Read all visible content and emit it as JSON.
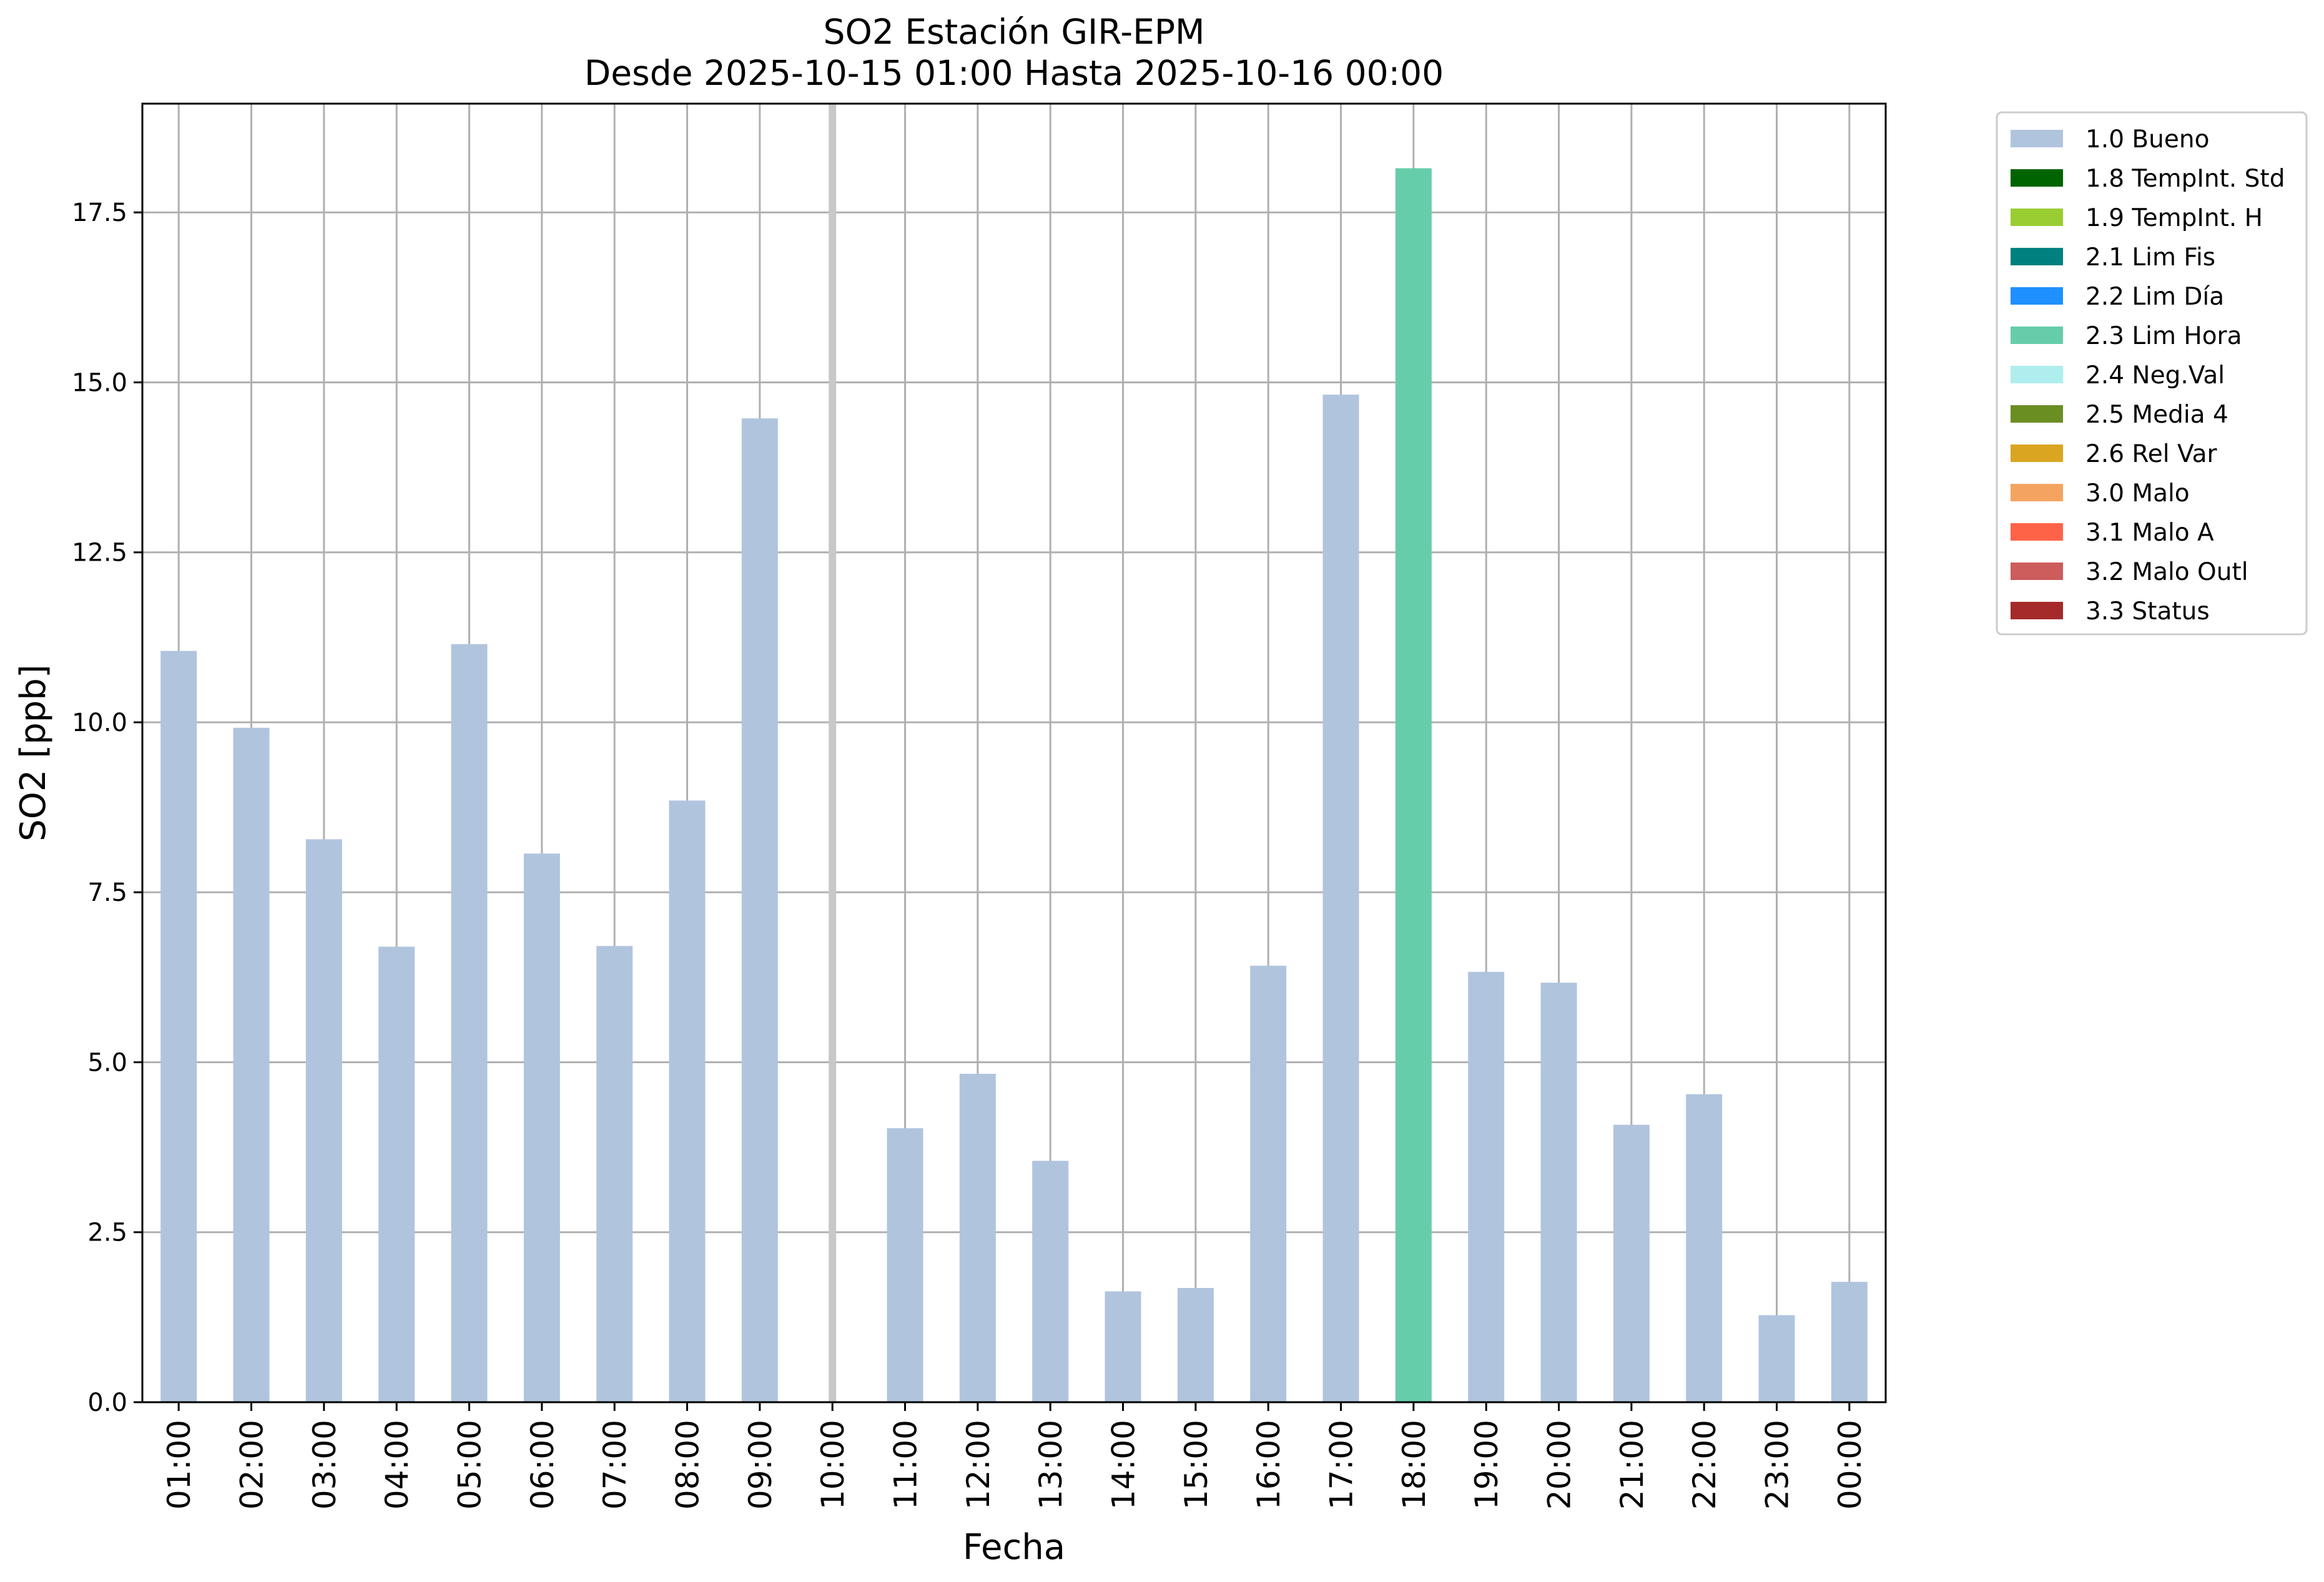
{
  "chart_data": {
    "type": "bar",
    "title": "SO2 Estación GIR-EPM",
    "subtitle": "Desde 2025-10-15 01:00 Hasta 2025-10-16 00:00",
    "xlabel": "Fecha",
    "ylabel": "SO2 [ppb]",
    "ylim": [
      0,
      19.1
    ],
    "yticks": [
      "0.0",
      "2.5",
      "5.0",
      "7.5",
      "10.0",
      "12.5",
      "15.0",
      "17.5"
    ],
    "ytick_values": [
      0,
      2.5,
      5,
      7.5,
      10,
      12.5,
      15,
      17.5
    ],
    "grid": true,
    "legend_position": "outside-top-right",
    "categories": [
      "01:00",
      "02:00",
      "03:00",
      "04:00",
      "05:00",
      "06:00",
      "07:00",
      "08:00",
      "09:00",
      "10:00",
      "11:00",
      "12:00",
      "13:00",
      "14:00",
      "15:00",
      "16:00",
      "17:00",
      "18:00",
      "19:00",
      "20:00",
      "21:00",
      "22:00",
      "23:00",
      "00:00"
    ],
    "values": [
      11.05,
      9.92,
      8.28,
      6.7,
      11.15,
      8.07,
      6.71,
      8.85,
      14.47,
      null,
      4.03,
      4.83,
      3.55,
      1.63,
      1.68,
      6.42,
      14.82,
      18.15,
      6.33,
      6.17,
      4.08,
      4.53,
      1.28,
      1.77
    ],
    "flags": [
      "1.0 Bueno",
      "1.0 Bueno",
      "1.0 Bueno",
      "1.0 Bueno",
      "1.0 Bueno",
      "1.0 Bueno",
      "1.0 Bueno",
      "1.0 Bueno",
      "1.0 Bueno",
      null,
      "1.0 Bueno",
      "1.0 Bueno",
      "1.0 Bueno",
      "1.0 Bueno",
      "1.0 Bueno",
      "1.0 Bueno",
      "1.0 Bueno",
      "2.3 Lim Hora",
      "1.0 Bueno",
      "1.0 Bueno",
      "1.0 Bueno",
      "1.0 Bueno",
      "1.0 Bueno",
      "1.0 Bueno"
    ],
    "missing_marker_category": "10:00",
    "missing_marker_color": "#c8c8c8",
    "legend": [
      {
        "label": "1.0 Bueno",
        "color": "#b0c4de"
      },
      {
        "label": "1.8 TempInt. Std",
        "color": "#006400"
      },
      {
        "label": "1.9 TempInt. H",
        "color": "#9acd32"
      },
      {
        "label": "2.1 Lim Fis",
        "color": "#008080"
      },
      {
        "label": "2.2 Lim Día",
        "color": "#1e90ff"
      },
      {
        "label": "2.3 Lim Hora",
        "color": "#66cdaa"
      },
      {
        "label": "2.4 Neg.Val",
        "color": "#afeeee"
      },
      {
        "label": "2.5 Media 4",
        "color": "#6b8e23"
      },
      {
        "label": "2.6 Rel Var",
        "color": "#daa520"
      },
      {
        "label": "3.0 Malo",
        "color": "#f4a460"
      },
      {
        "label": "3.1 Malo A",
        "color": "#ff6347"
      },
      {
        "label": "3.2 Malo Outl",
        "color": "#cd5c5c"
      },
      {
        "label": "3.3 Status",
        "color": "#a52a2a"
      }
    ]
  }
}
